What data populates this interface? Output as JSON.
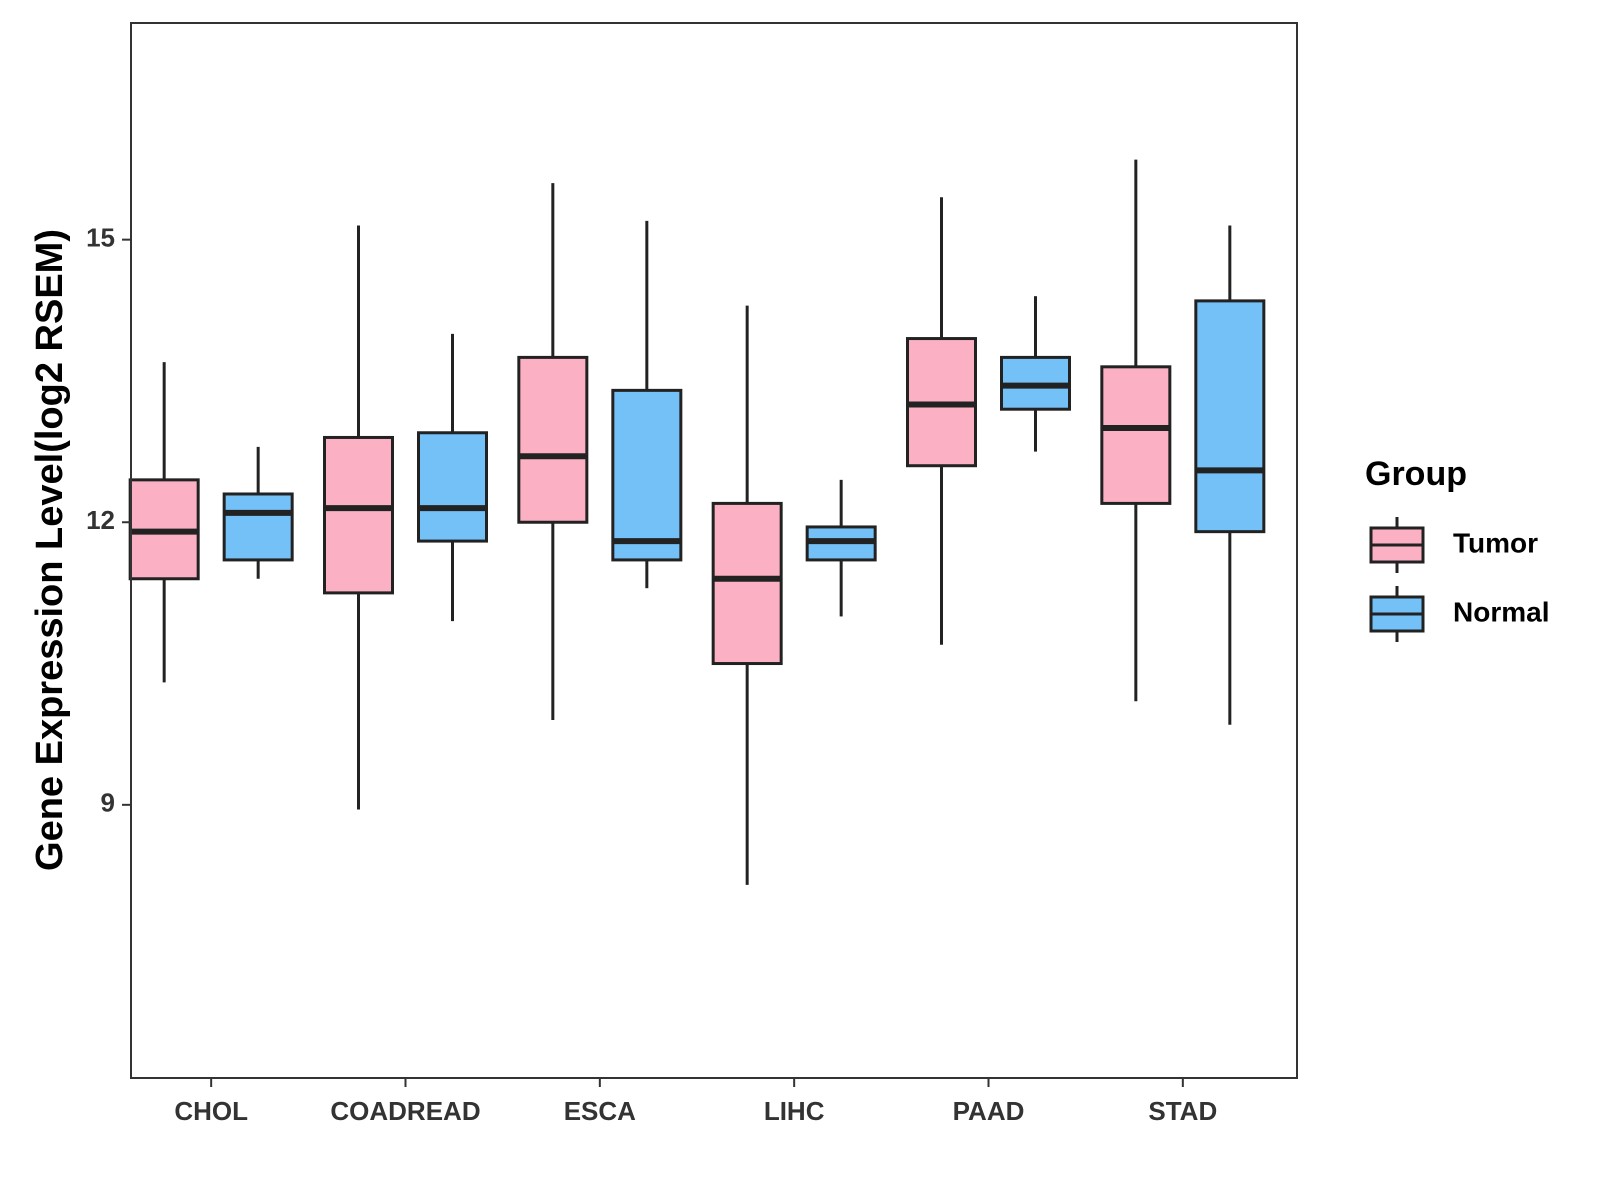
{
  "chart_data": {
    "type": "boxplot",
    "title": "",
    "xlabel": "",
    "ylabel": "Gene Expression Level(log2 RSEM)",
    "ylim": [
      6.1,
      17.3
    ],
    "yticks": [
      9,
      12,
      15
    ],
    "categories": [
      "CHOL",
      "COADREAD",
      "ESCA",
      "LIHC",
      "PAAD",
      "STAD"
    ],
    "legend": {
      "title": "Group",
      "position": "right",
      "entries": [
        "Tumor",
        "Normal"
      ]
    },
    "series": [
      {
        "name": "Tumor",
        "color": "#FBB1C3",
        "boxes": [
          {
            "category": "CHOL",
            "min": 10.3,
            "q1": 11.4,
            "median": 11.9,
            "q3": 12.45,
            "max": 13.7
          },
          {
            "category": "COADREAD",
            "min": 8.95,
            "q1": 11.25,
            "median": 12.15,
            "q3": 12.9,
            "max": 15.15
          },
          {
            "category": "ESCA",
            "min": 9.9,
            "q1": 12.0,
            "median": 12.7,
            "q3": 13.75,
            "max": 15.6
          },
          {
            "category": "LIHC",
            "min": 8.15,
            "q1": 10.5,
            "median": 11.4,
            "q3": 12.2,
            "max": 14.3
          },
          {
            "category": "PAAD",
            "min": 10.7,
            "q1": 12.6,
            "median": 13.25,
            "q3": 13.95,
            "max": 15.45
          },
          {
            "category": "STAD",
            "min": 10.1,
            "q1": 12.2,
            "median": 13.0,
            "q3": 13.65,
            "max": 15.85
          }
        ]
      },
      {
        "name": "Normal",
        "color": "#74C1F8",
        "boxes": [
          {
            "category": "CHOL",
            "min": 11.4,
            "q1": 11.6,
            "median": 12.1,
            "q3": 12.3,
            "max": 12.8
          },
          {
            "category": "COADREAD",
            "min": 10.95,
            "q1": 11.8,
            "median": 12.15,
            "q3": 12.95,
            "max": 14.0
          },
          {
            "category": "ESCA",
            "min": 11.3,
            "q1": 11.6,
            "median": 11.8,
            "q3": 13.4,
            "max": 15.2
          },
          {
            "category": "LIHC",
            "min": 11.0,
            "q1": 11.6,
            "median": 11.8,
            "q3": 11.95,
            "max": 12.45
          },
          {
            "category": "PAAD",
            "min": 12.75,
            "q1": 13.2,
            "median": 13.45,
            "q3": 13.75,
            "max": 14.4
          },
          {
            "category": "STAD",
            "min": 9.85,
            "q1": 11.9,
            "median": 12.55,
            "q3": 14.35,
            "max": 15.15
          }
        ]
      }
    ]
  }
}
